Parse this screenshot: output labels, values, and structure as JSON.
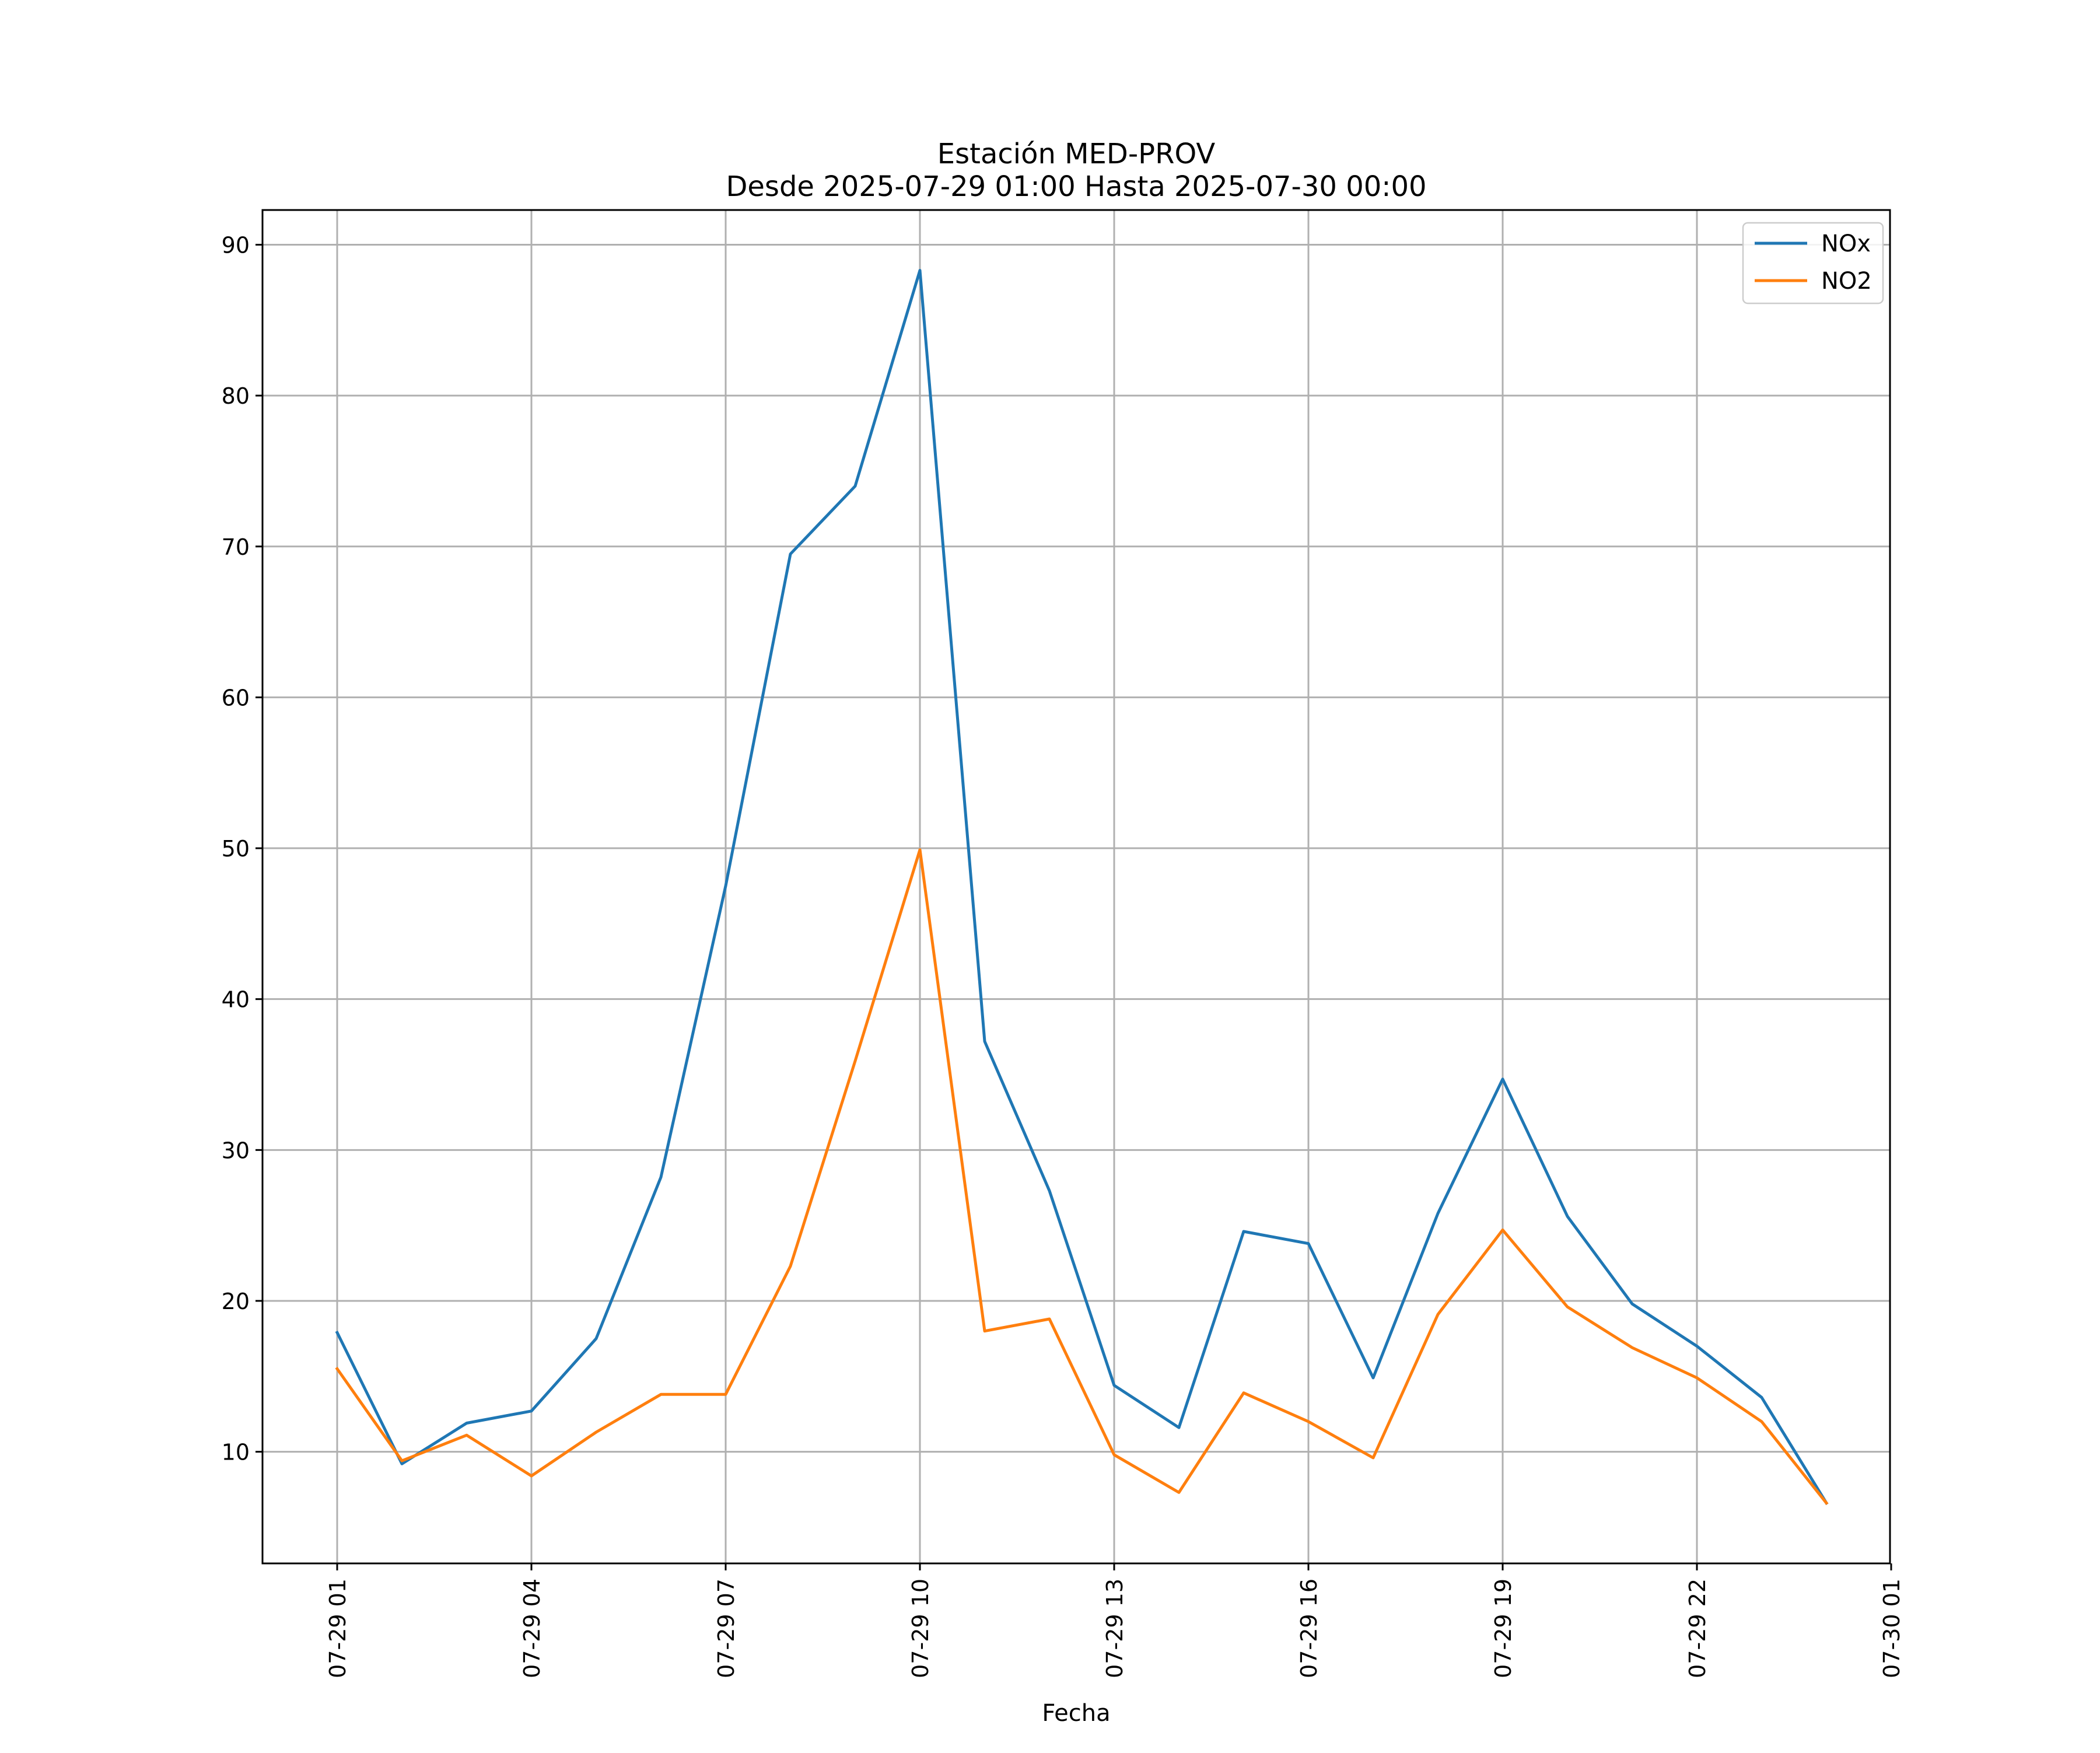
{
  "chart_data": {
    "type": "line",
    "title": "Estación MED-PROV",
    "subtitle": "Desde 2025-07-29 01:00 Hasta 2025-07-30 00:00",
    "xlabel": "Fecha",
    "ylabel": "",
    "x": [
      "07-29 01:00",
      "07-29 02:00",
      "07-29 03:00",
      "07-29 04:00",
      "07-29 05:00",
      "07-29 06:00",
      "07-29 07:00",
      "07-29 08:00",
      "07-29 09:00",
      "07-29 10:00",
      "07-29 11:00",
      "07-29 12:00",
      "07-29 13:00",
      "07-29 14:00",
      "07-29 15:00",
      "07-29 16:00",
      "07-29 17:00",
      "07-29 18:00",
      "07-29 19:00",
      "07-29 20:00",
      "07-29 21:00",
      "07-29 22:00",
      "07-29 23:00",
      "07-30 00:00"
    ],
    "x_ticks": [
      "07-29 01",
      "07-29 04",
      "07-29 07",
      "07-29 10",
      "07-29 13",
      "07-29 16",
      "07-29 19",
      "07-29 22",
      "07-30 01"
    ],
    "y_ticks": [
      "10",
      "20",
      "30",
      "40",
      "50",
      "60",
      "70",
      "80",
      "90"
    ],
    "ylim": [
      2.6,
      92.3
    ],
    "grid": true,
    "legend_position": "top-right",
    "series": [
      {
        "name": "NOx",
        "color": "#1f77b4",
        "values": [
          17.9,
          9.2,
          11.9,
          12.7,
          17.5,
          28.2,
          47.5,
          69.5,
          74.0,
          88.3,
          37.2,
          27.3,
          14.4,
          11.6,
          24.6,
          23.8,
          14.9,
          25.8,
          34.7,
          25.6,
          19.8,
          17.0,
          13.6,
          6.6
        ]
      },
      {
        "name": "NO2",
        "color": "#ff7f0e",
        "values": [
          15.5,
          9.4,
          11.1,
          8.4,
          11.3,
          13.8,
          13.8,
          22.3,
          35.9,
          49.9,
          18.0,
          18.8,
          9.8,
          7.3,
          13.9,
          12.0,
          9.6,
          19.1,
          24.7,
          19.6,
          16.9,
          14.9,
          12.0,
          6.6
        ]
      }
    ]
  }
}
